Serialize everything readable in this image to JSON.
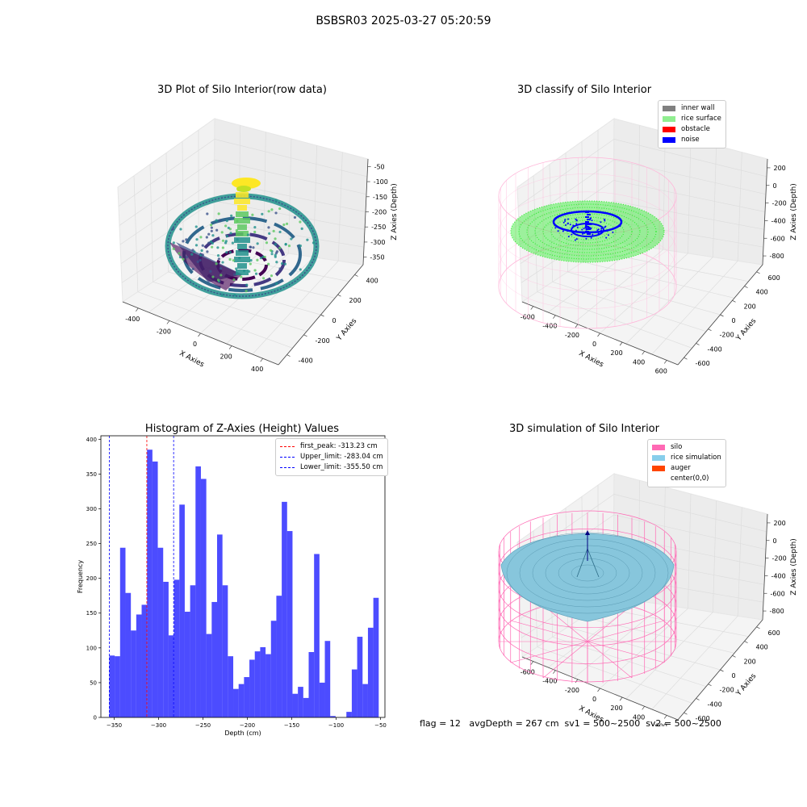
{
  "figure": {
    "suptitle": "BSBSR03 2025-03-27 05:20:59",
    "status_line": "flag = 12   avgDepth = 267 cm  sv1 = 500~2500  sv2 = 500~2500"
  },
  "panels": {
    "raw": {
      "title": "3D Plot of Silo Interior(row data)",
      "xlabel": "X Axies",
      "ylabel": "Y Axies",
      "zlabel": "Z Axies (Depth)",
      "xticks": [
        "-400",
        "-200",
        "0",
        "200",
        "400"
      ],
      "yticks": [
        "-400",
        "-200",
        "0",
        "200",
        "400"
      ],
      "zticks": [
        "-50",
        "-100",
        "-150",
        "-200",
        "-250",
        "-300",
        "-350"
      ],
      "colors": {
        "low": "#440154",
        "mid": "#21918c",
        "high": "#fde725"
      }
    },
    "classify": {
      "title": "3D classify of Silo Interior",
      "xlabel": "X Axies",
      "ylabel": "Y Axies",
      "zlabel": "Z Axies (Depth)",
      "xticks": [
        "-600",
        "-400",
        "-200",
        "0",
        "200",
        "400",
        "600"
      ],
      "yticks": [
        "-600",
        "-400",
        "-200",
        "0",
        "200",
        "400",
        "600"
      ],
      "zticks": [
        "200",
        "0",
        "-200",
        "-400",
        "-600",
        "-800"
      ],
      "legend": [
        {
          "label": "inner wall",
          "color": "#808080"
        },
        {
          "label": "rice surface",
          "color": "#90ee90"
        },
        {
          "label": "obstacle",
          "color": "#ff0000"
        },
        {
          "label": "noise",
          "color": "#0000ff"
        }
      ],
      "colors": {
        "wall": "#ffb6d9",
        "surface": "#33ee33",
        "noise": "#0000ff"
      }
    },
    "simulation": {
      "title": "3D simulation of Silo Interior",
      "xlabel": "X Axies",
      "ylabel": "Y Axies",
      "zlabel": "Z Axies (Depth)",
      "xticks": [
        "-600",
        "-400",
        "-200",
        "0",
        "200",
        "400",
        "600"
      ],
      "yticks": [
        "-600",
        "-400",
        "-200",
        "0",
        "200",
        "400",
        "600"
      ],
      "zticks": [
        "200",
        "0",
        "-200",
        "-400",
        "-600",
        "-800"
      ],
      "legend": [
        {
          "label": "silo",
          "color": "#ff69b4"
        },
        {
          "label": "rice simulation",
          "color": "#87ceeb"
        },
        {
          "label": "auger",
          "color": "#ff4500"
        },
        {
          "label": "center(0,0)",
          "color": ""
        }
      ],
      "colors": {
        "silo": "#ff69b4",
        "rice": "#87c6dc",
        "center": "#000080"
      }
    }
  },
  "chart_data": {
    "type": "bar",
    "title": "Histogram of Z-Axies (Height) Values",
    "xlabel": "Depth (cm)",
    "ylabel": "Frequency",
    "xlim": [
      -365,
      -45
    ],
    "ylim": [
      0,
      405
    ],
    "xticks": [
      -350,
      -300,
      -250,
      -200,
      -150,
      -100,
      -50
    ],
    "xtick_labels": [
      "−350",
      "−300",
      "−250",
      "−200",
      "−150",
      "−100",
      "−50"
    ],
    "yticks": [
      0,
      50,
      100,
      150,
      200,
      250,
      300,
      350,
      400
    ],
    "bar_color": "#0000ff",
    "bin_start": -355.5,
    "bin_width": 6.07,
    "values": [
      89,
      88,
      244,
      179,
      125,
      148,
      162,
      385,
      368,
      244,
      195,
      118,
      198,
      306,
      152,
      190,
      361,
      343,
      120,
      166,
      263,
      190,
      88,
      41,
      48,
      58,
      83,
      95,
      101,
      91,
      139,
      175,
      310,
      268,
      34,
      44,
      28,
      94,
      235,
      50,
      110,
      2,
      0,
      0,
      8,
      69,
      116,
      48,
      129,
      172
    ],
    "lines": [
      {
        "label": "first_peak: -313.23 cm",
        "x": -313.23,
        "color": "#ff0000"
      },
      {
        "label": "Upper_limit: -283.04 cm",
        "x": -283.04,
        "color": "#0000ff"
      },
      {
        "label": "Lower_limit: -355.50 cm",
        "x": -355.5,
        "color": "#0000ff"
      }
    ],
    "legend_position": "upper right"
  }
}
